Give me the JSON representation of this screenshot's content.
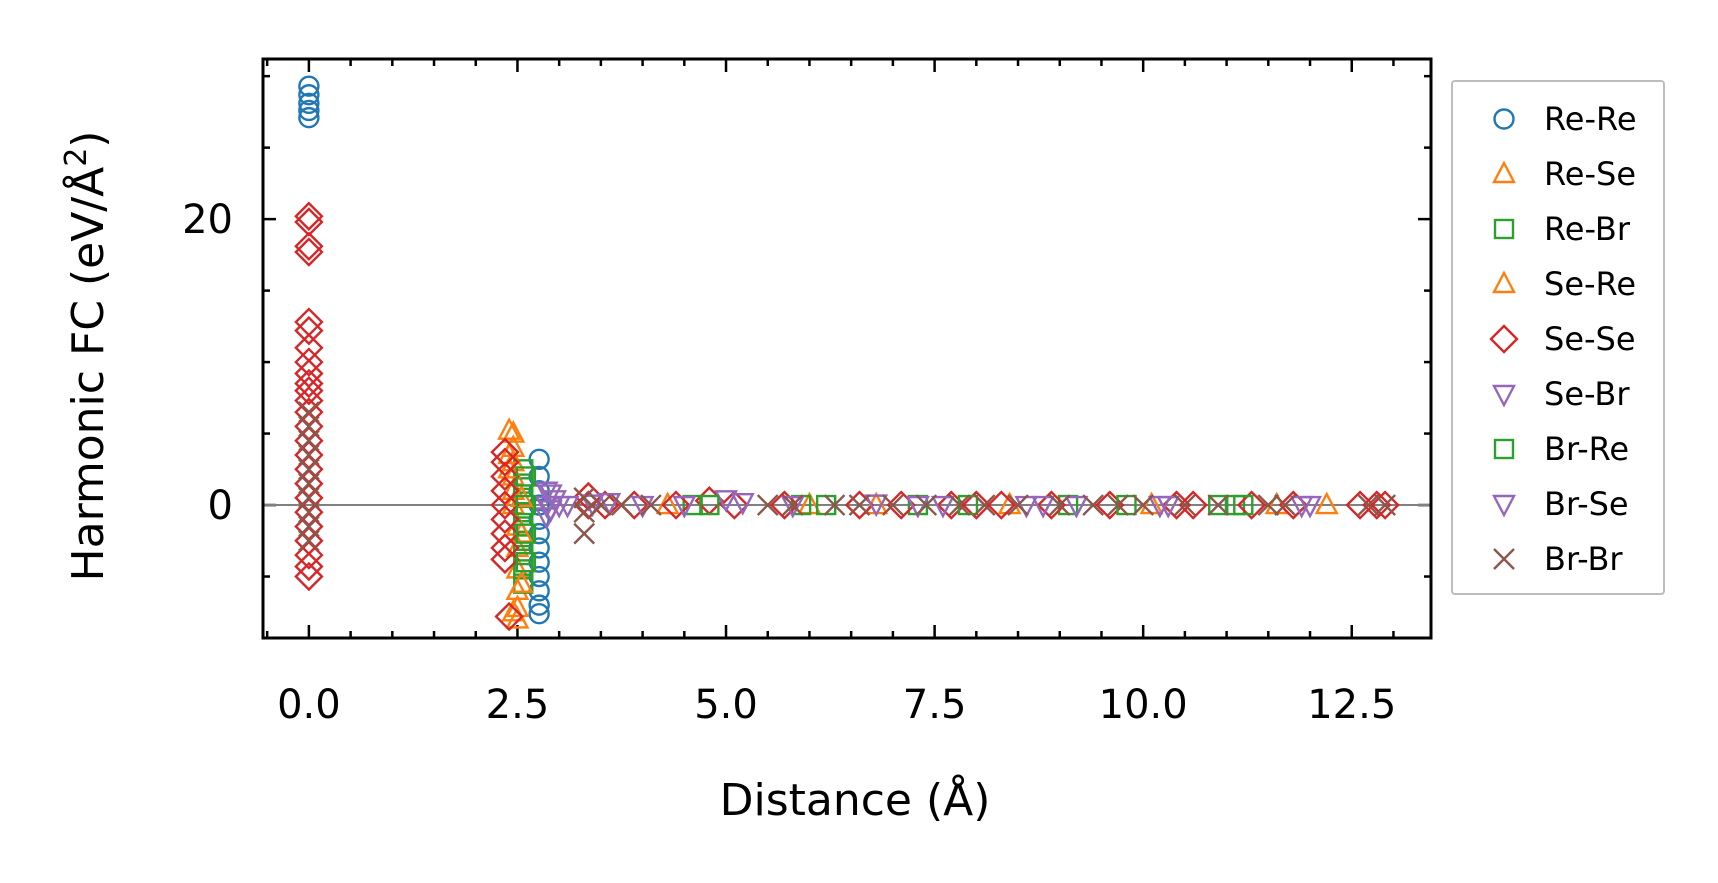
{
  "chart_data": {
    "type": "scatter",
    "xlabel": "Distance (Å)",
    "ylabel": "Harmonic FC (eV/Å",
    "ylabel_sup": "2",
    "ylabel_close": ")",
    "xlim": [
      -0.55,
      13.45
    ],
    "ylim": [
      -9.3,
      31.2
    ],
    "x_ticks": [
      {
        "value": 0.0,
        "label": "0.0"
      },
      {
        "value": 2.5,
        "label": "2.5"
      },
      {
        "value": 5.0,
        "label": "5.0"
      },
      {
        "value": 7.5,
        "label": "7.5"
      },
      {
        "value": 10.0,
        "label": "10.0"
      },
      {
        "value": 12.5,
        "label": "12.5"
      }
    ],
    "y_ticks": [
      {
        "value": 0,
        "label": "0"
      },
      {
        "value": 20,
        "label": "20"
      }
    ],
    "x_minor_step": 0.5,
    "y_minor_step": 5,
    "grid": false,
    "zero_line": true,
    "legend_position": "outside-right",
    "series": [
      {
        "name": "Re-Re",
        "marker": "circle",
        "color": "#1f77b4",
        "points": [
          [
            0,
            29.3
          ],
          [
            0,
            28.7
          ],
          [
            0,
            28.1
          ],
          [
            0,
            27.6
          ],
          [
            0,
            27.1
          ],
          [
            2.76,
            3.2
          ],
          [
            2.76,
            2.0
          ],
          [
            2.76,
            1.0
          ],
          [
            2.76,
            0.0
          ],
          [
            2.76,
            -1.0
          ],
          [
            2.76,
            -2.0
          ],
          [
            2.76,
            -3.0
          ],
          [
            2.76,
            -4.0
          ],
          [
            2.76,
            -5.0
          ],
          [
            2.76,
            -6.0
          ],
          [
            2.76,
            -7.0
          ],
          [
            2.76,
            -7.6
          ]
        ]
      },
      {
        "name": "Re-Se",
        "marker": "triangle-up",
        "color": "#ff7f0e",
        "points": [
          [
            2.45,
            5.0
          ],
          [
            2.45,
            4.0
          ],
          [
            2.45,
            3.0
          ],
          [
            2.45,
            2.0
          ],
          [
            2.45,
            1.0
          ],
          [
            2.45,
            0.0
          ],
          [
            2.5,
            -1.5
          ],
          [
            2.5,
            -3.0
          ],
          [
            2.5,
            -4.5
          ],
          [
            2.5,
            -6.0
          ],
          [
            2.5,
            -7.2
          ],
          [
            2.5,
            -8.0
          ],
          [
            4.3,
            0.0
          ],
          [
            6.0,
            0.0
          ],
          [
            8.4,
            0.0
          ],
          [
            10.1,
            0.0
          ],
          [
            12.2,
            0.0
          ]
        ]
      },
      {
        "name": "Re-Br",
        "marker": "square",
        "color": "#2ca02c",
        "points": [
          [
            2.57,
            2.5
          ],
          [
            2.57,
            1.5
          ],
          [
            2.57,
            0.5
          ],
          [
            2.57,
            -0.5
          ],
          [
            2.57,
            -1.5
          ],
          [
            2.57,
            -2.5
          ],
          [
            2.57,
            -3.5
          ],
          [
            2.57,
            -4.5
          ],
          [
            2.57,
            -5.5
          ],
          [
            4.6,
            0.0
          ],
          [
            5.9,
            0.0
          ],
          [
            7.3,
            0.0
          ],
          [
            9.1,
            0.0
          ],
          [
            10.9,
            0.0
          ],
          [
            11.1,
            0.0
          ]
        ]
      },
      {
        "name": "Se-Re",
        "marker": "triangle-up",
        "color": "#ff7f0e",
        "points": [
          [
            2.4,
            5.2
          ],
          [
            2.4,
            3.5
          ],
          [
            2.4,
            2.5
          ],
          [
            2.55,
            0.5
          ],
          [
            2.55,
            -2.0
          ],
          [
            2.55,
            -5.5
          ],
          [
            2.45,
            -7.5
          ],
          [
            6.8,
            0.0
          ],
          [
            11.6,
            0.0
          ]
        ]
      },
      {
        "name": "Se-Se",
        "marker": "diamond",
        "color": "#d62728",
        "points": [
          [
            0,
            20.2
          ],
          [
            0,
            19.8
          ],
          [
            0,
            18.1
          ],
          [
            0,
            17.7
          ],
          [
            0,
            12.8
          ],
          [
            0,
            12.2
          ],
          [
            0,
            11.0
          ],
          [
            0,
            10.0
          ],
          [
            0,
            9.2
          ],
          [
            0,
            8.5
          ],
          [
            0,
            8.0
          ],
          [
            0,
            7.3
          ],
          [
            0,
            6.5
          ],
          [
            0,
            5.5
          ],
          [
            0,
            4.5
          ],
          [
            0,
            3.5
          ],
          [
            0,
            2.5
          ],
          [
            0,
            1.5
          ],
          [
            0,
            0.5
          ],
          [
            0,
            -0.5
          ],
          [
            0,
            -1.5
          ],
          [
            0,
            -2.5
          ],
          [
            0,
            -3.5
          ],
          [
            0,
            -4.3
          ],
          [
            0,
            -5.0
          ],
          [
            2.35,
            3.7
          ],
          [
            2.35,
            3.0
          ],
          [
            2.35,
            2.0
          ],
          [
            2.35,
            1.0
          ],
          [
            2.35,
            0.0
          ],
          [
            2.35,
            -1.0
          ],
          [
            2.35,
            -2.0
          ],
          [
            2.35,
            -3.0
          ],
          [
            2.35,
            -3.8
          ],
          [
            2.4,
            -7.8
          ],
          [
            3.35,
            0.6
          ],
          [
            3.35,
            0.0
          ],
          [
            3.55,
            0.0
          ],
          [
            3.9,
            0.0
          ],
          [
            4.4,
            0.0
          ],
          [
            4.8,
            0.3
          ],
          [
            5.1,
            0.0
          ],
          [
            5.7,
            0.0
          ],
          [
            6.6,
            0.0
          ],
          [
            7.1,
            0.0
          ],
          [
            7.7,
            0.0
          ],
          [
            8.0,
            0.0
          ],
          [
            8.3,
            0.0
          ],
          [
            8.9,
            0.0
          ],
          [
            9.6,
            0.0
          ],
          [
            10.4,
            0.0
          ],
          [
            10.6,
            0.0
          ],
          [
            11.3,
            0.0
          ],
          [
            11.8,
            0.0
          ],
          [
            12.6,
            0.0
          ],
          [
            12.8,
            0.0
          ],
          [
            12.9,
            0.0
          ]
        ]
      },
      {
        "name": "Se-Br",
        "marker": "triangle-down",
        "color": "#9467bd",
        "points": [
          [
            2.85,
            1.0
          ],
          [
            2.85,
            0.0
          ],
          [
            2.85,
            -0.8
          ],
          [
            2.95,
            0.4
          ],
          [
            3.0,
            0.0
          ],
          [
            3.6,
            0.2
          ],
          [
            4.0,
            0.0
          ],
          [
            5.0,
            0.4
          ],
          [
            5.2,
            0.2
          ],
          [
            6.8,
            0.1
          ],
          [
            7.3,
            0.0
          ],
          [
            8.6,
            0.0
          ],
          [
            9.2,
            0.0
          ],
          [
            10.2,
            0.0
          ],
          [
            11.9,
            0.0
          ]
        ]
      },
      {
        "name": "Br-Re",
        "marker": "square",
        "color": "#2ca02c",
        "points": [
          [
            2.6,
            2.0
          ],
          [
            2.6,
            0.0
          ],
          [
            2.6,
            -2.0
          ],
          [
            2.6,
            -4.0
          ],
          [
            4.8,
            0.0
          ],
          [
            6.2,
            0.0
          ],
          [
            7.9,
            0.0
          ],
          [
            9.8,
            0.0
          ],
          [
            11.2,
            0.0
          ]
        ]
      },
      {
        "name": "Br-Se",
        "marker": "triangle-down",
        "color": "#9467bd",
        "points": [
          [
            2.9,
            0.8
          ],
          [
            2.9,
            -0.3
          ],
          [
            3.1,
            0.0
          ],
          [
            3.4,
            0.1
          ],
          [
            4.5,
            0.0
          ],
          [
            5.8,
            0.0
          ],
          [
            7.6,
            0.0
          ],
          [
            8.8,
            0.0
          ],
          [
            10.3,
            0.0
          ],
          [
            12.0,
            0.0
          ]
        ]
      },
      {
        "name": "Br-Br",
        "marker": "x",
        "color": "#8c564b",
        "points": [
          [
            0,
            6.5
          ],
          [
            0,
            5.5
          ],
          [
            0,
            4.5
          ],
          [
            0,
            3.5
          ],
          [
            0,
            2.5
          ],
          [
            0,
            1.5
          ],
          [
            0,
            0.5
          ],
          [
            0,
            -0.5
          ],
          [
            0,
            -1.5
          ],
          [
            0,
            -2.5
          ],
          [
            3.3,
            -2.0
          ],
          [
            3.3,
            -0.5
          ],
          [
            3.3,
            0.5
          ],
          [
            3.5,
            0.0
          ],
          [
            3.75,
            0.0
          ],
          [
            4.1,
            0.0
          ],
          [
            5.5,
            0.0
          ],
          [
            5.8,
            0.0
          ],
          [
            6.3,
            0.0
          ],
          [
            6.6,
            0.0
          ],
          [
            7.0,
            0.0
          ],
          [
            7.4,
            0.0
          ],
          [
            7.8,
            0.0
          ],
          [
            8.1,
            0.0
          ],
          [
            8.5,
            0.0
          ],
          [
            9.0,
            0.0
          ],
          [
            9.4,
            0.0
          ],
          [
            9.7,
            0.0
          ],
          [
            10.0,
            0.0
          ],
          [
            10.5,
            0.0
          ],
          [
            10.9,
            0.0
          ],
          [
            11.5,
            0.0
          ],
          [
            11.7,
            0.0
          ],
          [
            12.7,
            0.0
          ],
          [
            12.9,
            0.0
          ]
        ]
      }
    ]
  }
}
